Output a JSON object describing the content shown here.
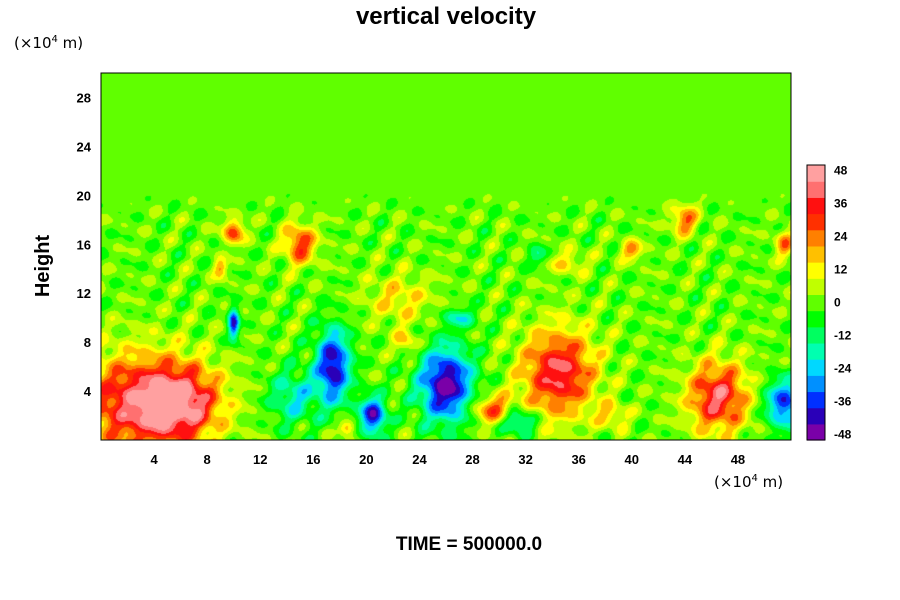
{
  "chart_data": {
    "type": "heatmap",
    "title": "vertical velocity",
    "ylabel": "Height",
    "xunit": {
      "prefix": "(×10",
      "exp": "4",
      "suffix": " m)"
    },
    "yunit": {
      "prefix": "(×10",
      "exp": "4",
      "suffix": " m)"
    },
    "xlim": [
      0,
      52
    ],
    "ylim": [
      0,
      30
    ],
    "xticks": [
      "4",
      "8",
      "12",
      "16",
      "20",
      "24",
      "28",
      "32",
      "36",
      "40",
      "44",
      "48"
    ],
    "yticks": [
      "4",
      "8",
      "12",
      "16",
      "20",
      "24",
      "28"
    ],
    "colorbar": {
      "range": [
        -50,
        50
      ],
      "ticks": [
        "48",
        "36",
        "24",
        "12",
        "0",
        "-12",
        "-24",
        "-36",
        "-48"
      ],
      "colors": [
        "#7a00a8",
        "#2a00b8",
        "#0030ff",
        "#0090ff",
        "#00d8ff",
        "#00ffb0",
        "#00ff60",
        "#00ff00",
        "#60ff00",
        "#c0ff00",
        "#ffff00",
        "#ffc000",
        "#ff8000",
        "#ff3000",
        "#ff1010",
        "#ff7070",
        "#ffa0a0"
      ]
    },
    "background_value": 0,
    "upper_level_noise_height": 20,
    "features": [
      {
        "x": 2.5,
        "y": 3.0,
        "value": 36,
        "sx": 4.5,
        "sy": 4.0
      },
      {
        "x": 6.0,
        "y": 3.0,
        "value": 38,
        "sx": 3.0,
        "sy": 3.0
      },
      {
        "x": 10.0,
        "y": 17.0,
        "value": 30,
        "sx": 0.8,
        "sy": 1.0
      },
      {
        "x": 9.0,
        "y": 14.0,
        "value": 22,
        "sx": 0.5,
        "sy": 0.8
      },
      {
        "x": 15.0,
        "y": 16.0,
        "value": 32,
        "sx": 1.2,
        "sy": 1.6
      },
      {
        "x": 10.0,
        "y": 9.5,
        "value": -40,
        "sx": 0.4,
        "sy": 1.3
      },
      {
        "x": 14.5,
        "y": 3.5,
        "value": -20,
        "sx": 1.8,
        "sy": 2.2
      },
      {
        "x": 17.5,
        "y": 6.0,
        "value": -44,
        "sx": 1.3,
        "sy": 3.0
      },
      {
        "x": 20.5,
        "y": 2.0,
        "value": -42,
        "sx": 1.0,
        "sy": 1.5
      },
      {
        "x": 18.5,
        "y": 1.0,
        "value": 24,
        "sx": 0.6,
        "sy": 0.6
      },
      {
        "x": 26.0,
        "y": 4.5,
        "value": -48,
        "sx": 2.0,
        "sy": 3.0
      },
      {
        "x": 29.5,
        "y": 2.5,
        "value": 28,
        "sx": 1.5,
        "sy": 1.2
      },
      {
        "x": 31.5,
        "y": 1.5,
        "value": -28,
        "sx": 1.2,
        "sy": 1.0
      },
      {
        "x": 34.5,
        "y": 5.5,
        "value": 40,
        "sx": 2.7,
        "sy": 3.5
      },
      {
        "x": 38.5,
        "y": 2.0,
        "value": 16,
        "sx": 1.2,
        "sy": 1.0
      },
      {
        "x": 46.5,
        "y": 3.5,
        "value": 40,
        "sx": 2.2,
        "sy": 2.8
      },
      {
        "x": 51.5,
        "y": 3.0,
        "value": -36,
        "sx": 1.4,
        "sy": 2.0
      },
      {
        "x": 44.0,
        "y": 18.0,
        "value": 26,
        "sx": 1.0,
        "sy": 1.2
      },
      {
        "x": 40.0,
        "y": 15.5,
        "value": 24,
        "sx": 0.8,
        "sy": 0.8
      },
      {
        "x": 33.0,
        "y": 15.0,
        "value": -16,
        "sx": 0.8,
        "sy": 0.8
      },
      {
        "x": 35.0,
        "y": 14.5,
        "value": 14,
        "sx": 1.5,
        "sy": 1.0
      },
      {
        "x": 51.5,
        "y": 16.0,
        "value": 22,
        "sx": 0.7,
        "sy": 1.2
      },
      {
        "x": 22.5,
        "y": 11.5,
        "value": 14,
        "sx": 2.5,
        "sy": 2.0
      },
      {
        "x": 27.0,
        "y": 10.0,
        "value": -18,
        "sx": 1.2,
        "sy": 0.8
      },
      {
        "x": 23.0,
        "y": 8.0,
        "value": 18,
        "sx": 0.8,
        "sy": 1.0
      }
    ]
  },
  "footer": {
    "time_label": "TIME = 500000.0"
  }
}
